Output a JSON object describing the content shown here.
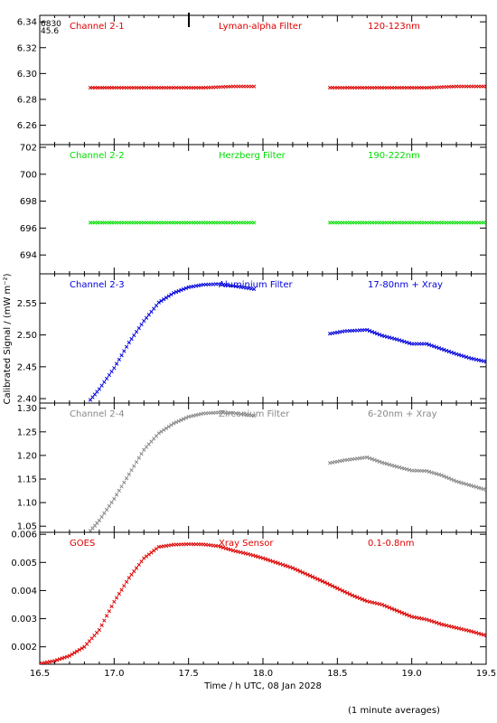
{
  "chart_data": [
    {
      "type": "scatter",
      "title": "Channel 2-1",
      "filter": "Lyman-alpha Filter",
      "band": "120-123nm",
      "color": "#dd0000",
      "marker": "x",
      "xlim": [
        16.5,
        19.5
      ],
      "ylim": [
        6.245,
        6.345
      ],
      "yticks": [
        "6.26",
        "6.28",
        "6.30",
        "6.32",
        "6.34"
      ],
      "overlay_text": [
        "6830",
        "45.6"
      ],
      "series": [
        {
          "x": [
            16.84,
            17.0,
            17.2,
            17.4,
            17.6,
            17.8,
            17.94
          ],
          "y": [
            6.289,
            6.289,
            6.289,
            6.289,
            6.289,
            6.29,
            6.29
          ]
        },
        {
          "x": [
            18.45,
            18.7,
            18.9,
            19.1,
            19.3,
            19.5
          ],
          "y": [
            6.289,
            6.289,
            6.289,
            6.289,
            6.29,
            6.29
          ]
        }
      ]
    },
    {
      "type": "scatter",
      "title": "Channel 2-2",
      "filter": "Herzberg Filter",
      "band": "190-222nm",
      "color": "#00dd00",
      "marker": "x",
      "xlim": [
        16.5,
        19.5
      ],
      "ylim": [
        692.6,
        702.2
      ],
      "yticks": [
        "694",
        "696",
        "698",
        "700",
        "702"
      ],
      "series": [
        {
          "x": [
            16.84,
            17.0,
            17.2,
            17.4,
            17.6,
            17.8,
            17.94
          ],
          "y": [
            696.4,
            696.4,
            696.4,
            696.4,
            696.4,
            696.4,
            696.4
          ]
        },
        {
          "x": [
            18.45,
            18.7,
            18.9,
            19.1,
            19.3,
            19.5
          ],
          "y": [
            696.4,
            696.4,
            696.4,
            696.4,
            696.4,
            696.4
          ]
        }
      ]
    },
    {
      "type": "scatter",
      "title": "Channel 2-3",
      "filter": "Aluminium Filter",
      "band": "17-80nm + Xray",
      "color": "#0000dd",
      "marker": "x",
      "xlim": [
        16.5,
        19.5
      ],
      "ylim": [
        2.393,
        2.596
      ],
      "yticks": [
        "2.40",
        "2.45",
        "2.50",
        "2.55"
      ],
      "series": [
        {
          "x": [
            16.84,
            16.9,
            17.0,
            17.1,
            17.2,
            17.3,
            17.4,
            17.5,
            17.6,
            17.7,
            17.8,
            17.94
          ],
          "y": [
            2.398,
            2.415,
            2.448,
            2.488,
            2.522,
            2.551,
            2.566,
            2.575,
            2.579,
            2.58,
            2.577,
            2.572
          ]
        },
        {
          "x": [
            18.45,
            18.55,
            18.7,
            18.8,
            18.9,
            19.0,
            19.1,
            19.2,
            19.3,
            19.4,
            19.5
          ],
          "y": [
            2.502,
            2.506,
            2.508,
            2.499,
            2.493,
            2.486,
            2.486,
            2.478,
            2.47,
            2.463,
            2.458
          ]
        }
      ]
    },
    {
      "type": "scatter",
      "title": "Channel 2-4",
      "filter": "Zirconium Filter",
      "band": "6-20nm + Xray",
      "color": "#888888",
      "marker": "x",
      "xlim": [
        16.5,
        19.5
      ],
      "ylim": [
        1.037,
        1.311
      ],
      "yticks": [
        "1.05",
        "1.10",
        "1.15",
        "1.20",
        "1.25",
        "1.30"
      ],
      "series": [
        {
          "x": [
            16.84,
            16.9,
            17.0,
            17.1,
            17.2,
            17.3,
            17.4,
            17.5,
            17.6,
            17.7,
            17.8,
            17.94
          ],
          "y": [
            1.04,
            1.062,
            1.108,
            1.16,
            1.212,
            1.247,
            1.268,
            1.282,
            1.289,
            1.291,
            1.29,
            1.284
          ]
        },
        {
          "x": [
            18.45,
            18.55,
            18.7,
            18.8,
            18.9,
            19.0,
            19.1,
            19.2,
            19.3,
            19.4,
            19.5
          ],
          "y": [
            1.184,
            1.19,
            1.196,
            1.185,
            1.176,
            1.168,
            1.167,
            1.158,
            1.145,
            1.136,
            1.127
          ]
        }
      ]
    },
    {
      "type": "scatter",
      "title": "GOES",
      "filter": "Xray Sensor",
      "band": "0.1-0.8nm",
      "color": "#dd0000",
      "marker": "x",
      "xlim": [
        16.5,
        19.5
      ],
      "ylim": [
        0.00138,
        0.00607
      ],
      "yticks": [
        "0.002",
        "0.003",
        "0.004",
        "0.005",
        "0.006"
      ],
      "xticks": [
        "16.5",
        "17.0",
        "17.5",
        "18.0",
        "18.5",
        "19.0",
        "19.5"
      ],
      "xlabel": "Time / h UTC, 08 Jan 2028",
      "ylabel": "Calibrated Signal / (mW m⁻²)",
      "series": [
        {
          "x": [
            16.5,
            16.6,
            16.7,
            16.8,
            16.9,
            17.0,
            17.1,
            17.2,
            17.3,
            17.4,
            17.5,
            17.6,
            17.7,
            17.8,
            17.9,
            18.0,
            18.2,
            18.4,
            18.6,
            18.7,
            18.8,
            19.0,
            19.1,
            19.2,
            19.4,
            19.5
          ],
          "y": [
            0.0014,
            0.0015,
            0.00168,
            0.002,
            0.0026,
            0.0036,
            0.00445,
            0.00515,
            0.00555,
            0.00563,
            0.00565,
            0.00564,
            0.00558,
            0.00542,
            0.0053,
            0.00515,
            0.0048,
            0.00433,
            0.00383,
            0.00362,
            0.0035,
            0.00307,
            0.00297,
            0.0028,
            0.00255,
            0.0024
          ]
        }
      ]
    }
  ],
  "footnote": "(1 minute averages)"
}
